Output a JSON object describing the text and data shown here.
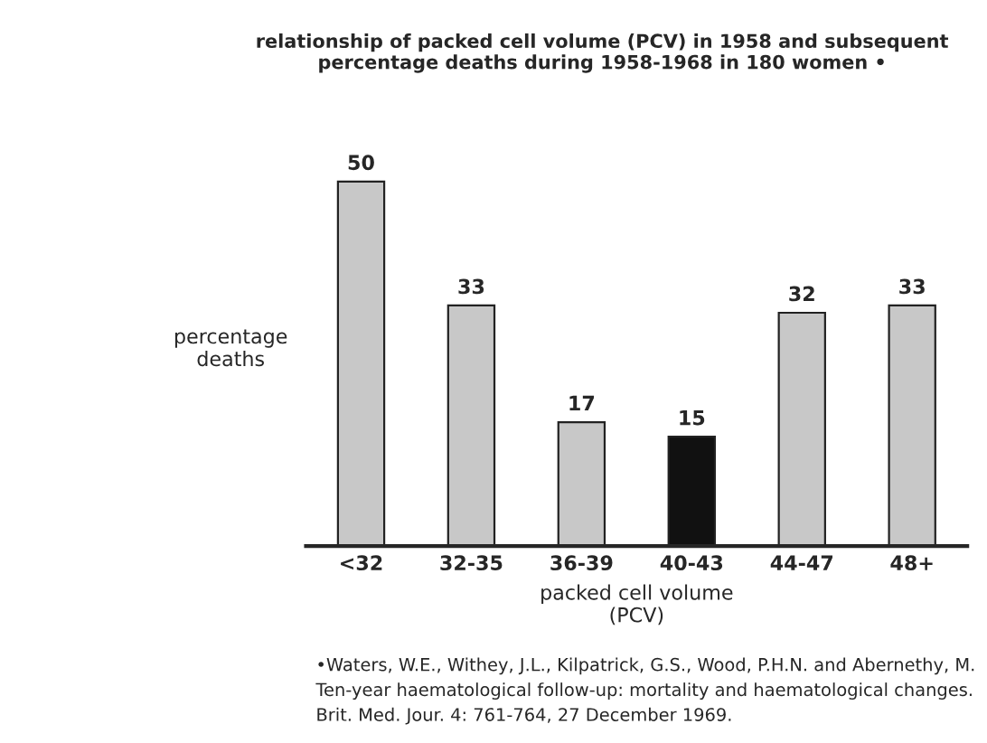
{
  "chart_data": {
    "type": "bar",
    "title": "relationship of packed cell volume (PCV) in 1958 and subsequent\npercentage deaths during 1958-1968 in 180 women •",
    "categories": [
      "<32",
      "32-35",
      "36-39",
      "40-43",
      "44-47",
      "48+"
    ],
    "values": [
      50,
      33,
      17,
      15,
      32,
      33
    ],
    "colors": [
      "#c8c8c8",
      "#c8c8c8",
      "#c8c8c8",
      "#111111",
      "#c8c8c8",
      "#c8c8c8"
    ],
    "data_labels": true,
    "grid": false,
    "legend": false,
    "tick_labels": "x",
    "xlabel": "packed cell volume\n(PCV)",
    "ylabel": "percentage\ndeaths",
    "annotations": [
      "•Waters, W.E., Withey, J.L., Kilpatrick, G.S., Wood, P.H.N. and Abernethy, M.\nTen-year haematological follow-up: mortality and haematological changes.\nBrit. Med. Jour. 4: 761-764, 27 December 1969."
    ]
  }
}
